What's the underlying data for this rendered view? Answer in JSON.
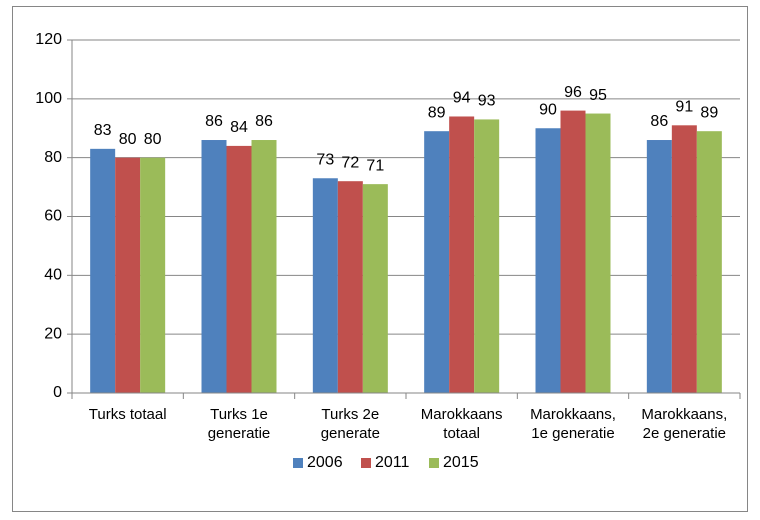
{
  "chart_data": {
    "type": "bar",
    "categories": [
      "Turks totaal",
      "Turks 1e\ngeneratie",
      "Turks 2e\ngenerate",
      "Marokkaans\ntotaal",
      "Marokkaans,\n1e generatie",
      "Marokkaans,\n2e generatie"
    ],
    "series": [
      {
        "name": "2006",
        "color": "#4f81bd",
        "values": [
          83,
          86,
          73,
          89,
          90,
          86
        ]
      },
      {
        "name": "2011",
        "color": "#c0504d",
        "values": [
          80,
          84,
          72,
          94,
          96,
          91
        ]
      },
      {
        "name": "2015",
        "color": "#9bbb59",
        "values": [
          80,
          86,
          71,
          93,
          95,
          89
        ]
      }
    ],
    "ylim": [
      0,
      120
    ],
    "yticks": [
      0,
      20,
      40,
      60,
      80,
      100,
      120
    ],
    "grid": true,
    "legend": "bottom"
  }
}
